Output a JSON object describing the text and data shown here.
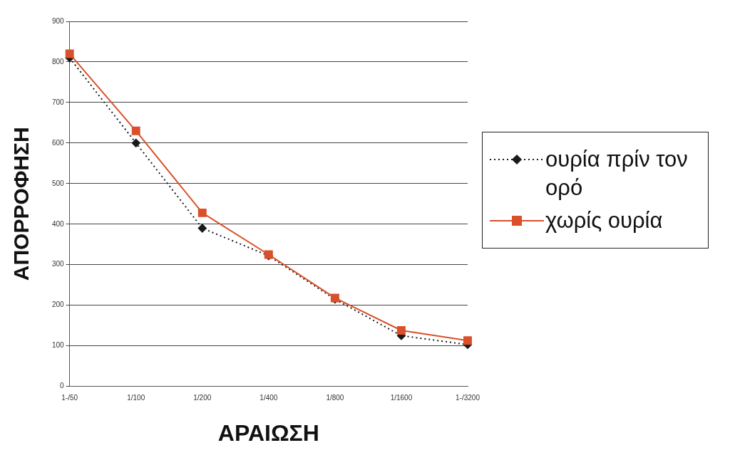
{
  "chart_data": {
    "type": "line",
    "xlabel": "ΑΡΑΙΩΣΗ",
    "ylabel": "ΑΠΟΡΡΟΦΗΣΗ",
    "categories": [
      "1-/50",
      "1/100",
      "1/200",
      "1/400",
      "1/800",
      "1/1600",
      "1-/3200"
    ],
    "series": [
      {
        "name": "ουρία πρίν τον ορό",
        "color": "#1a1a1a",
        "marker": "diamond",
        "line_style": "dotted",
        "values": [
          810,
          600,
          390,
          322,
          215,
          125,
          103
        ]
      },
      {
        "name": "χωρίς ουρία",
        "color": "#d9502a",
        "marker": "square",
        "line_style": "solid",
        "values": [
          820,
          630,
          428,
          325,
          218,
          138,
          113
        ]
      }
    ],
    "ylim": [
      0,
      900
    ],
    "yticks": [
      0,
      100,
      200,
      300,
      400,
      500,
      600,
      700,
      800,
      900
    ],
    "grid": "y",
    "legend": "right"
  }
}
